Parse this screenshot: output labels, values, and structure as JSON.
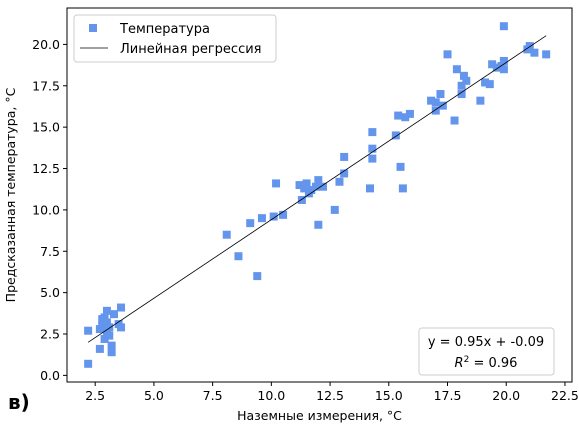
{
  "panel_label": "в)",
  "chart_data": {
    "type": "scatter",
    "xlabel": "Наземные измерения, °C",
    "ylabel": "Предсказанная температура, °C",
    "xlim": [
      1.3,
      22.8
    ],
    "ylim": [
      -0.4,
      22.2
    ],
    "xticks": [
      2.5,
      5.0,
      7.5,
      10.0,
      12.5,
      15.0,
      17.5,
      20.0,
      22.5
    ],
    "yticks": [
      0.0,
      2.5,
      5.0,
      7.5,
      10.0,
      12.5,
      15.0,
      17.5,
      20.0
    ],
    "grid": false,
    "legend_position": "top-left",
    "series": [
      {
        "name": "Температура",
        "kind": "scatter",
        "marker": "square",
        "color": "#6495ed",
        "points": [
          [
            2.2,
            2.7
          ],
          [
            2.2,
            0.7
          ],
          [
            2.7,
            1.6
          ],
          [
            2.7,
            2.8
          ],
          [
            2.8,
            3.4
          ],
          [
            2.8,
            3.0
          ],
          [
            2.9,
            3.5
          ],
          [
            2.9,
            2.2
          ],
          [
            3.0,
            3.2
          ],
          [
            3.0,
            2.6
          ],
          [
            3.0,
            3.9
          ],
          [
            3.1,
            2.9
          ],
          [
            3.1,
            2.4
          ],
          [
            3.2,
            1.4
          ],
          [
            3.2,
            1.8
          ],
          [
            3.3,
            3.7
          ],
          [
            3.5,
            3.1
          ],
          [
            3.6,
            2.9
          ],
          [
            3.6,
            4.1
          ],
          [
            8.1,
            8.5
          ],
          [
            8.6,
            7.2
          ],
          [
            9.1,
            9.2
          ],
          [
            9.4,
            6.0
          ],
          [
            9.6,
            9.5
          ],
          [
            10.1,
            9.6
          ],
          [
            10.2,
            11.6
          ],
          [
            10.5,
            9.7
          ],
          [
            11.2,
            11.5
          ],
          [
            11.3,
            10.6
          ],
          [
            11.4,
            11.3
          ],
          [
            11.5,
            11.6
          ],
          [
            11.6,
            11.0
          ],
          [
            11.7,
            11.2
          ],
          [
            11.9,
            11.4
          ],
          [
            12.0,
            11.8
          ],
          [
            12.0,
            9.1
          ],
          [
            12.2,
            11.4
          ],
          [
            12.7,
            10.0
          ],
          [
            12.9,
            11.7
          ],
          [
            13.1,
            12.2
          ],
          [
            13.1,
            13.2
          ],
          [
            14.2,
            11.3
          ],
          [
            14.3,
            14.7
          ],
          [
            14.3,
            13.7
          ],
          [
            14.3,
            13.1
          ],
          [
            15.3,
            14.5
          ],
          [
            15.4,
            15.7
          ],
          [
            15.5,
            12.6
          ],
          [
            15.6,
            11.3
          ],
          [
            15.7,
            15.6
          ],
          [
            15.9,
            15.8
          ],
          [
            16.8,
            16.6
          ],
          [
            17.0,
            16.5
          ],
          [
            17.0,
            16.0
          ],
          [
            17.2,
            17.0
          ],
          [
            17.3,
            16.3
          ],
          [
            17.5,
            19.4
          ],
          [
            17.8,
            15.4
          ],
          [
            17.9,
            18.5
          ],
          [
            18.1,
            17.5
          ],
          [
            18.1,
            17.0
          ],
          [
            18.2,
            18.1
          ],
          [
            18.3,
            17.8
          ],
          [
            18.9,
            16.6
          ],
          [
            19.1,
            17.7
          ],
          [
            19.3,
            17.6
          ],
          [
            19.4,
            18.8
          ],
          [
            19.6,
            18.6
          ],
          [
            19.7,
            18.6
          ],
          [
            19.8,
            18.7
          ],
          [
            19.9,
            18.5
          ],
          [
            19.9,
            19.0
          ],
          [
            19.9,
            21.1
          ],
          [
            20.9,
            19.7
          ],
          [
            21.0,
            19.9
          ],
          [
            21.2,
            19.5
          ],
          [
            21.7,
            19.4
          ]
        ]
      },
      {
        "name": "Линейная регрессия",
        "kind": "line",
        "color": "#000000",
        "slope": 0.95,
        "intercept": -0.09,
        "x_range": [
          2.2,
          21.7
        ]
      }
    ],
    "annotation": {
      "equation": "y = 0.95x + -0.09",
      "r2_label": "R",
      "r2_sup": "2",
      "r2_value": " = 0.96"
    }
  }
}
